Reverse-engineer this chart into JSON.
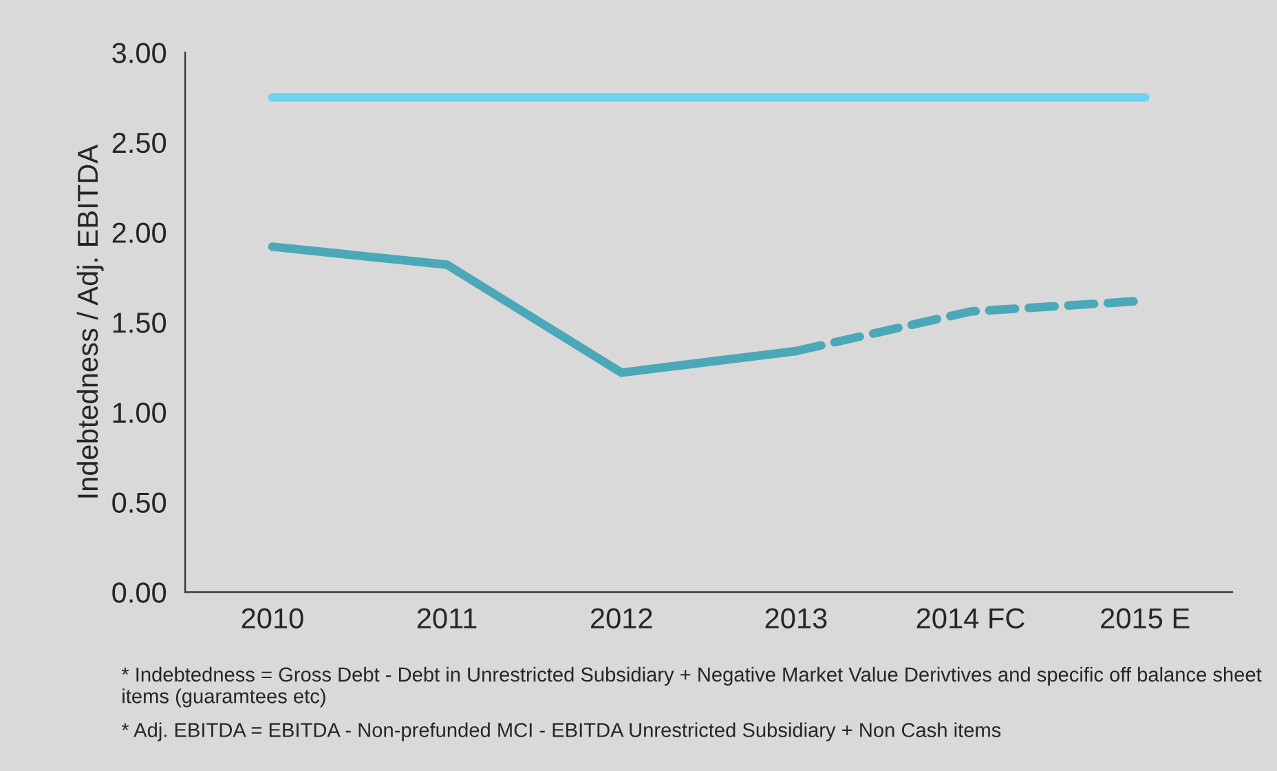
{
  "chart_data": {
    "type": "line",
    "ylabel": "Indebtedness / Adj. EBITDA",
    "categories": [
      "2010",
      "2011",
      "2012",
      "2013",
      "2014 FC",
      "2015 E"
    ],
    "series": [
      {
        "color": "#6dd3f0",
        "values": [
          2.75,
          2.75,
          2.75,
          2.75,
          2.75,
          2.75
        ],
        "line_style": "solid"
      },
      {
        "color": "#4aa8b8",
        "values": [
          1.92,
          1.82,
          1.22,
          1.34,
          null,
          null
        ],
        "line_style": "solid"
      },
      {
        "color": "#4aa8b8",
        "values": [
          null,
          null,
          null,
          1.34,
          1.56,
          1.62
        ],
        "line_style": "dashed"
      }
    ],
    "ylim": [
      0,
      3
    ],
    "yticks": [
      {
        "value": 0,
        "label": "0.00"
      },
      {
        "value": 0.5,
        "label": "0.50"
      },
      {
        "value": 1,
        "label": "1.00"
      },
      {
        "value": 1.5,
        "label": "1.50"
      },
      {
        "value": 2,
        "label": "2.00"
      },
      {
        "value": 2.5,
        "label": "2.50"
      },
      {
        "value": 3,
        "label": "3.00"
      }
    ],
    "grid": false,
    "annotations": [
      "* Indebtedness = Gross Debt - Debt in Unrestricted Subsidiary + Negative Market Value Derivtives and specific off balance sheet items (guaramtees etc)",
      "* Adj. EBITDA = EBITDA - Non-prefunded MCI - EBITDA Unrestricted Subsidiary + Non Cash items"
    ]
  }
}
